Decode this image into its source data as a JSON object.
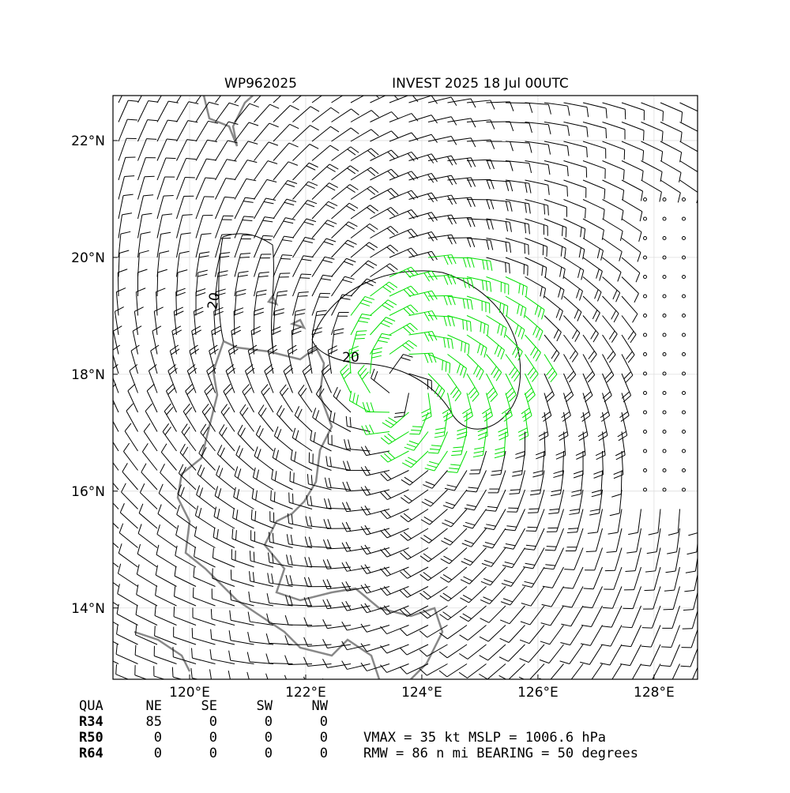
{
  "map": {
    "title_left": "WP962025",
    "title_right": "INVEST 2025 18 Jul 00UTC",
    "xlim": [
      118.68,
      128.75
    ],
    "ylim": [
      12.78,
      22.77
    ],
    "xticks": [
      {
        "value": 120,
        "label": "120°E"
      },
      {
        "value": 122,
        "label": "122°E"
      },
      {
        "value": 124,
        "label": "124°E"
      },
      {
        "value": 126,
        "label": "126°E"
      },
      {
        "value": 128,
        "label": "128°E"
      }
    ],
    "yticks": [
      {
        "value": 14,
        "label": "14°N"
      },
      {
        "value": 16,
        "label": "16°N"
      },
      {
        "value": 18,
        "label": "18°N"
      },
      {
        "value": 20,
        "label": "20°N"
      },
      {
        "value": 22,
        "label": "22°N"
      }
    ],
    "grid": true,
    "contour_labels": [
      20,
      20
    ],
    "table": {
      "header": [
        "QUA",
        "NE",
        "SE",
        "SW",
        "NW"
      ],
      "rows": [
        [
          "R34",
          85,
          0,
          0,
          0
        ],
        [
          "R50",
          0,
          0,
          0,
          0
        ],
        [
          "R64",
          0,
          0,
          0,
          0
        ]
      ]
    },
    "info": [
      "VMAX =  35 kt MSLP = 1006.6 hPa",
      "RMW =  86 n mi BEARING =  50 degrees"
    ]
  }
}
